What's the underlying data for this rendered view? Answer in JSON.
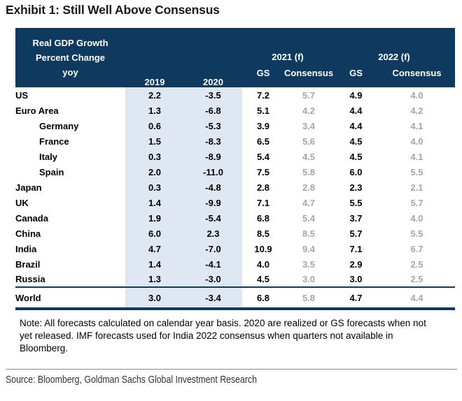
{
  "title": "Exhibit 1: Still Well Above Consensus",
  "table": {
    "header": {
      "label_lines": [
        "Real GDP Growth",
        "Percent Change",
        "yoy"
      ],
      "years": [
        "2019",
        "2020"
      ],
      "groups": [
        {
          "label": "2021 (f)",
          "sub": [
            "GS",
            "Consensus"
          ]
        },
        {
          "label": "2022 (f)",
          "sub": [
            "GS",
            "Consensus"
          ]
        }
      ]
    }
  },
  "chart_data": {
    "type": "table",
    "title": "Exhibit 1: Still Well Above Consensus",
    "units": "Real GDP Growth, Percent Change yoy",
    "columns": [
      "2019",
      "2020",
      "2021 (f) GS",
      "2021 (f) Consensus",
      "2022 (f) GS",
      "2022 (f) Consensus"
    ],
    "rows": [
      {
        "name": "US",
        "indent": false,
        "values": [
          "2.2",
          "-3.5",
          "7.2",
          "5.7",
          "4.9",
          "4.0"
        ]
      },
      {
        "name": "Euro Area",
        "indent": false,
        "values": [
          "1.3",
          "-6.8",
          "5.1",
          "4.2",
          "4.4",
          "4.2"
        ]
      },
      {
        "name": "Germany",
        "indent": true,
        "values": [
          "0.6",
          "-5.3",
          "3.9",
          "3.4",
          "4.4",
          "4.1"
        ]
      },
      {
        "name": "France",
        "indent": true,
        "values": [
          "1.5",
          "-8.3",
          "6.5",
          "5.6",
          "4.5",
          "4.0"
        ]
      },
      {
        "name": "Italy",
        "indent": true,
        "values": [
          "0.3",
          "-8.9",
          "5.4",
          "4.5",
          "4.5",
          "4.1"
        ]
      },
      {
        "name": "Spain",
        "indent": true,
        "values": [
          "2.0",
          "-11.0",
          "7.5",
          "5.8",
          "6.0",
          "5.5"
        ]
      },
      {
        "name": "Japan",
        "indent": false,
        "values": [
          "0.3",
          "-4.8",
          "2.8",
          "2.8",
          "2.3",
          "2.1"
        ]
      },
      {
        "name": "UK",
        "indent": false,
        "values": [
          "1.4",
          "-9.9",
          "7.1",
          "4.7",
          "5.5",
          "5.7"
        ]
      },
      {
        "name": "Canada",
        "indent": false,
        "values": [
          "1.9",
          "-5.4",
          "6.8",
          "5.4",
          "3.7",
          "4.0"
        ]
      },
      {
        "name": "China",
        "indent": false,
        "values": [
          "6.0",
          "2.3",
          "8.5",
          "8.5",
          "5.7",
          "5.5"
        ]
      },
      {
        "name": "India",
        "indent": false,
        "values": [
          "4.7",
          "-7.0",
          "10.9",
          "9.4",
          "7.1",
          "6.7"
        ]
      },
      {
        "name": "Brazil",
        "indent": false,
        "values": [
          "1.4",
          "-4.1",
          "4.0",
          "3.5",
          "2.9",
          "2.5"
        ]
      },
      {
        "name": "Russia",
        "indent": false,
        "values": [
          "1.3",
          "-3.0",
          "4.5",
          "3.0",
          "3.0",
          "2.5"
        ]
      }
    ],
    "world": {
      "name": "World",
      "values": [
        "3.0",
        "-3.4",
        "6.8",
        "5.8",
        "4.7",
        "4.4"
      ]
    }
  },
  "note": "Note: All forecasts calculated on calendar year basis. 2020 are realized or GS forecasts when not yet released. IMF forecasts used for India 2022 consensus when quarters not available in Bloomberg.",
  "source": "Source: Bloomberg, Goldman Sachs Global Investment Research",
  "colors": {
    "header_bg": "#0f3a5f",
    "shaded_column_bg": "#dfe7f2",
    "consensus_text": "#a6a6a6",
    "gs_text": "#000000"
  }
}
